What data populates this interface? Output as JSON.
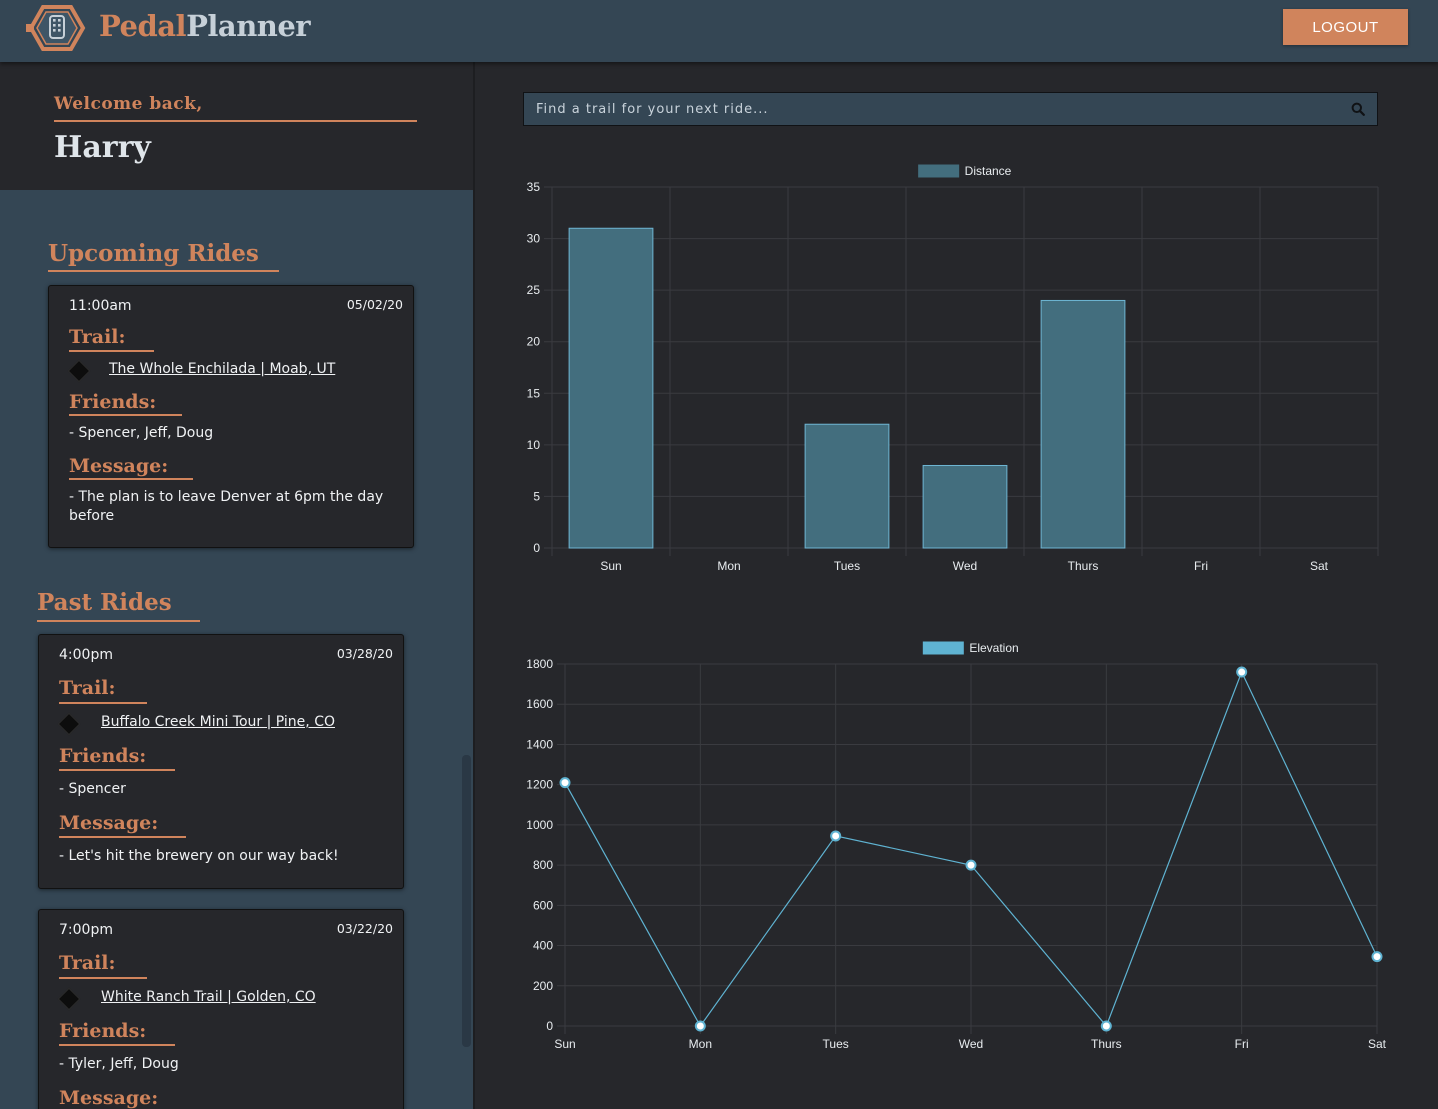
{
  "header": {
    "brand_part1": "Pedal",
    "brand_part2": "Planner",
    "logout_label": "LOGOUT",
    "colors": {
      "background": "#344654",
      "accent": "#d0845c"
    }
  },
  "sidebar": {
    "welcome_label": "Welcome back,",
    "user_name": "Harry",
    "upcoming_title": "Upcoming Rides",
    "past_title": "Past Rides",
    "labels": {
      "trail": "Trail:",
      "friends": "Friends:",
      "message": "Message:"
    },
    "upcoming": [
      {
        "time": "11:00am",
        "date": "05/02/20",
        "trail": "The Whole Enchilada | Moab, UT",
        "friends": "- Spencer, Jeff, Doug",
        "message": "- The plan is to leave Denver at 6pm the day before"
      }
    ],
    "past": [
      {
        "time": "4:00pm",
        "date": "03/28/20",
        "trail": "Buffalo Creek Mini Tour | Pine, CO",
        "friends": "- Spencer",
        "message": "- Let's hit the brewery on our way back!"
      },
      {
        "time": "7:00pm",
        "date": "03/22/20",
        "trail": "White Ranch Trail | Golden, CO",
        "friends": "- Tyler, Jeff, Doug",
        "message": ""
      }
    ]
  },
  "search": {
    "placeholder": "Find a trail for your next ride..."
  },
  "chart_data": [
    {
      "type": "bar",
      "categories": [
        "Sun",
        "Mon",
        "Tues",
        "Wed",
        "Thurs",
        "Fri",
        "Sat"
      ],
      "series": [
        {
          "name": "Distance",
          "values": [
            31,
            0,
            12,
            8,
            24,
            0,
            0
          ]
        }
      ],
      "ylim": [
        0,
        35
      ],
      "yticks": [
        0,
        5,
        10,
        15,
        20,
        25,
        30,
        35
      ],
      "legend": "top-center",
      "grid": true,
      "color": "#436e7e"
    },
    {
      "type": "line",
      "categories": [
        "Sun",
        "Mon",
        "Tues",
        "Wed",
        "Thurs",
        "Fri",
        "Sat"
      ],
      "series": [
        {
          "name": "Elevation",
          "values": [
            1210,
            0,
            945,
            800,
            0,
            1760,
            345
          ]
        }
      ],
      "ylim": [
        0,
        1800
      ],
      "yticks": [
        0,
        200,
        400,
        600,
        800,
        1000,
        1200,
        1400,
        1600,
        1800
      ],
      "legend": "top-center",
      "grid": true,
      "color": "#5fb3d2"
    }
  ]
}
